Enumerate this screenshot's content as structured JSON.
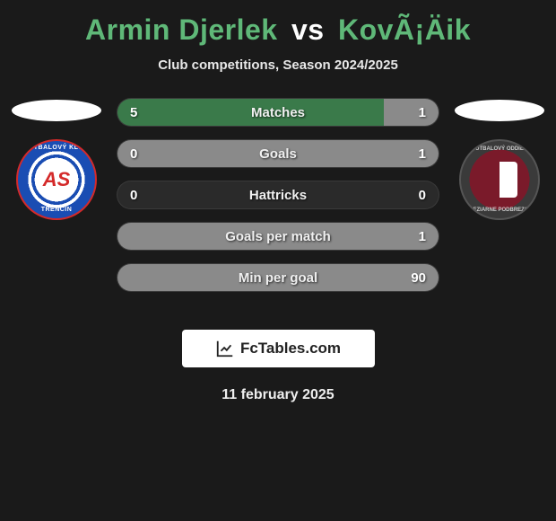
{
  "title": {
    "player1": "Armin Djerlek",
    "vs": "vs",
    "player2": "KovÃ¡Äik"
  },
  "subtitle": "Club competitions, Season 2024/2025",
  "colors": {
    "player1_accent": "#5fb878",
    "player2_accent": "#5fb878",
    "bar_left": "#3a7a4a",
    "bar_right": "#8a8a8a",
    "bar_bg": "#2a2a2a",
    "page_bg": "#1a1a1a"
  },
  "clubs": {
    "left": {
      "name": "AS Trenčín",
      "ring_top": "FUTBALOVÝ KLUB",
      "ring_bottom": "TRENČÍN"
    },
    "right": {
      "name": "Železiarne Podbrezová",
      "ring_top": "FUTBALOVÝ ODDIEL",
      "ring_bottom": "ŽELEZIARNE PODBREZOVÁ"
    }
  },
  "stats": [
    {
      "label": "Matches",
      "left_val": "5",
      "right_val": "1",
      "left_pct": 83,
      "right_pct": 17
    },
    {
      "label": "Goals",
      "left_val": "0",
      "right_val": "1",
      "left_pct": 0,
      "right_pct": 100
    },
    {
      "label": "Hattricks",
      "left_val": "0",
      "right_val": "0",
      "left_pct": 0,
      "right_pct": 0
    },
    {
      "label": "Goals per match",
      "left_val": "",
      "right_val": "1",
      "left_pct": 0,
      "right_pct": 100
    },
    {
      "label": "Min per goal",
      "left_val": "",
      "right_val": "90",
      "left_pct": 0,
      "right_pct": 100
    }
  ],
  "footer": {
    "brand": "FcTables.com"
  },
  "date": "11 february 2025"
}
